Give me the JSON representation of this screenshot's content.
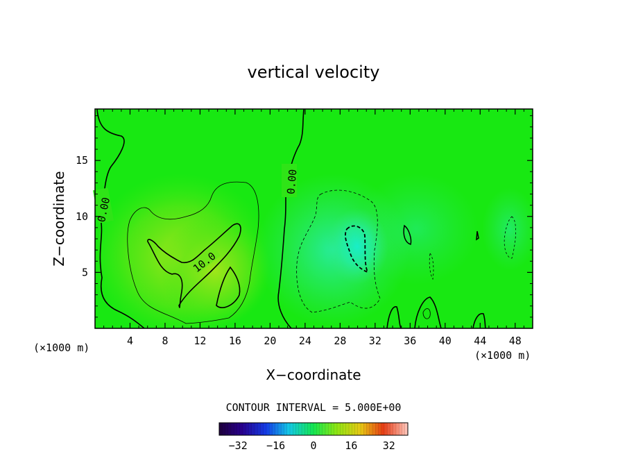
{
  "chart_data": {
    "type": "heatmap",
    "title": "vertical velocity",
    "xlabel": "X−coordinate",
    "ylabel": "Z−coordinate",
    "x_unit_left": "(×1000 m)",
    "x_unit_right": "(×1000 m)",
    "xlim": [
      0,
      50
    ],
    "ylim": [
      0,
      19.6
    ],
    "x_ticks": [
      4,
      8,
      12,
      16,
      20,
      24,
      28,
      32,
      36,
      40,
      44,
      48
    ],
    "x_tick_labels": [
      "4",
      "8",
      "12",
      "16",
      "20",
      "24",
      "28",
      "32",
      "36",
      "40",
      "44",
      "48"
    ],
    "y_ticks": [
      5,
      10,
      15
    ],
    "y_tick_labels": [
      "5",
      "10",
      "15"
    ],
    "contour_interval_text": "CONTOUR INTERVAL = 5.000E+00",
    "contour_labels": [
      {
        "text": "0.00",
        "x": 1.0,
        "y": 10.6,
        "rotate": -78
      },
      {
        "text": "0.00",
        "x": 22.5,
        "y": 13.1,
        "rotate": -85
      },
      {
        "text": "10.0",
        "x": 12.5,
        "y": 5.9,
        "rotate": -38
      }
    ],
    "colorbar": {
      "range": [
        -40,
        40
      ],
      "tick_values": [
        -32,
        -16,
        0,
        16,
        32
      ],
      "tick_labels": [
        "−32",
        "−16",
        "0",
        "16",
        "32"
      ]
    },
    "features": [
      {
        "kind": "updraft",
        "x": 10.0,
        "z": 5.0,
        "max": 14
      },
      {
        "kind": "updraft",
        "x": 15.5,
        "z": 5.2,
        "max": 12
      },
      {
        "kind": "downdraft",
        "x": 30.0,
        "z": 7.0,
        "min": -11
      },
      {
        "kind": "downdraft",
        "x": 27.0,
        "z": 5.0,
        "min": -6
      }
    ]
  }
}
